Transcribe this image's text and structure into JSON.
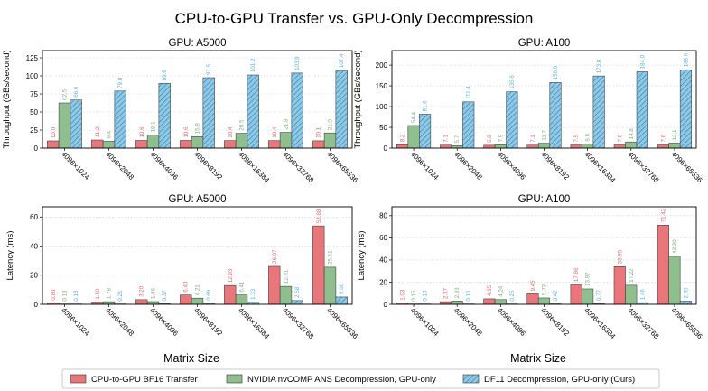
{
  "figure": {
    "title": "CPU-to-GPU Transfer vs. GPU-Only Decompression",
    "shared_xlabel": "Matrix Size"
  },
  "legend": [
    {
      "label": "CPU-to-GPU BF16 Transfer",
      "color": "#e8767a",
      "hatch": false
    },
    {
      "label": "NVIDIA nvCOMP ANS Decompression, GPU-only",
      "color": "#8fbf8f",
      "hatch": false
    },
    {
      "label": "DF11 Decompression, GPU-only (Ours)",
      "color": "#8ec9e6",
      "hatch": true
    }
  ],
  "colors": {
    "transfer": "#e8767a",
    "transfer_label": "#e06c70",
    "nvcomp": "#8fbf8f",
    "nvcomp_label": "#7faf7f",
    "df11": "#8ec9e6",
    "df11_label": "#5fb3d9",
    "hatch": "#3a7fb0",
    "grid": "#cccccc"
  },
  "chart_data": [
    {
      "type": "bar",
      "title": "GPU: A5000",
      "xlabel": "",
      "ylabel": "Throughput (GBs/second)",
      "ylim": [
        0,
        135
      ],
      "yticks": [
        0,
        25,
        50,
        75,
        100,
        125
      ],
      "grid": true,
      "categories": [
        "4096×1024",
        "4096×2048",
        "4096×4096",
        "4096×8192",
        "4096×16384",
        "4096×32768",
        "4096×65536"
      ],
      "series": [
        {
          "name": "CPU-to-GPU BF16 Transfer",
          "values": [
            10.0,
            11.2,
            10.6,
            10.6,
            10.4,
            10.4,
            10.1
          ]
        },
        {
          "name": "NVIDIA nvCOMP ANS Decompression, GPU-only",
          "values": [
            62.5,
            9.4,
            18.1,
            15.9,
            20.5,
            21.8,
            21.0
          ]
        },
        {
          "name": "DF11 Decompression, GPU-only (Ours)",
          "values": [
            66.6,
            79.0,
            89.6,
            97.5,
            101.2,
            103.9,
            107.4
          ]
        }
      ],
      "data_labels": [
        [
          "10.0",
          "11.2",
          "10.6",
          "10.6",
          "10.4",
          "10.4",
          "10.1"
        ],
        [
          "62.5",
          "9.4",
          "18.1",
          "15.9",
          "20.5",
          "21.8",
          "21.0"
        ],
        [
          "66.6",
          "79.0",
          "89.6",
          "97.5",
          "101.2",
          "103.9",
          "107.4"
        ]
      ]
    },
    {
      "type": "bar",
      "title": "GPU: A100",
      "xlabel": "",
      "ylabel": "Throughput (GBs/second)",
      "ylim": [
        0,
        235
      ],
      "yticks": [
        0,
        50,
        100,
        150,
        200
      ],
      "grid": true,
      "categories": [
        "4096×1024",
        "4096×2048",
        "4096×4096",
        "4096×8192",
        "4096×16384",
        "4096×32768",
        "4096×65536"
      ],
      "series": [
        {
          "name": "CPU-to-GPU BF16 Transfer",
          "values": [
            8.2,
            7.1,
            6.8,
            7.1,
            7.5,
            7.6,
            7.6
          ]
        },
        {
          "name": "NVIDIA nvCOMP ANS Decompression, GPU-only",
          "values": [
            54.4,
            5.7,
            7.9,
            11.7,
            9.6,
            14.8,
            12.1
          ]
        },
        {
          "name": "DF11 Decompression, GPU-only (Ours)",
          "values": [
            81.6,
            111.4,
            135.6,
            158.0,
            173.8,
            184.0,
            188.6
          ]
        }
      ],
      "data_labels": [
        [
          "8.2",
          "7.1",
          "6.8",
          "7.1",
          "7.5",
          "7.6",
          "7.6"
        ],
        [
          "54.4",
          "5.7",
          "7.9",
          "11.7",
          "9.6",
          "14.8",
          "12.1"
        ],
        [
          "81.6",
          "111.4",
          "135.6",
          "158.0",
          "173.8",
          "184.0",
          "188.6"
        ]
      ]
    },
    {
      "type": "bar",
      "title": "GPU: A5000",
      "xlabel": "Matrix Size",
      "ylabel": "Latency (ms)",
      "ylim": [
        0,
        67
      ],
      "yticks": [
        0,
        20,
        40,
        60
      ],
      "grid": true,
      "categories": [
        "4096×1024",
        "4096×2048",
        "4096×4096",
        "4096×8192",
        "4096×16384",
        "4096×32768",
        "4096×65536"
      ],
      "series": [
        {
          "name": "CPU-to-GPU BF16 Transfer",
          "values": [
            0.8,
            1.5,
            3.2,
            6.4,
            12.93,
            26.07,
            53.88
          ]
        },
        {
          "name": "NVIDIA nvCOMP ANS Decompression, GPU-only",
          "values": [
            0.13,
            1.78,
            1.86,
            4.21,
            6.41,
            12.31,
            25.51
          ]
        },
        {
          "name": "DF11 Decompression, GPU-only (Ours)",
          "values": [
            0.13,
            0.21,
            0.37,
            0.69,
            1.33,
            2.58,
            5.0
          ]
        }
      ],
      "data_labels": [
        [
          "0.80",
          "1.50",
          "3.20",
          "6.40",
          "12.93",
          "26.07",
          "53.88"
        ],
        [
          "0.13",
          "1.78",
          "1.86",
          "4.21",
          "6.41",
          "12.31",
          "25.51"
        ],
        [
          "0.13",
          "0.21",
          "0.37",
          "0.69",
          "1.33",
          "2.58",
          "5.00"
        ]
      ]
    },
    {
      "type": "bar",
      "title": "GPU: A100",
      "xlabel": "Matrix Size",
      "ylabel": "Latency (ms)",
      "ylim": [
        0,
        88
      ],
      "yticks": [
        0,
        20,
        40,
        60,
        80
      ],
      "grid": true,
      "categories": [
        "4096×1024",
        "4096×2048",
        "4096×4096",
        "4096×8192",
        "4096×16384",
        "4096×32768",
        "4096×65536"
      ],
      "series": [
        {
          "name": "CPU-to-GPU BF16 Transfer",
          "values": [
            1.03,
            2.37,
            4.95,
            9.45,
            17.86,
            33.95,
            71.42
          ]
        },
        {
          "name": "NVIDIA nvCOMP ANS Decompression, GPU-only",
          "values": [
            0.15,
            2.93,
            4.24,
            5.73,
            13.87,
            17.22,
            43.3
          ]
        },
        {
          "name": "DF11 Decompression, GPU-only (Ours)",
          "values": [
            0.1,
            0.15,
            0.25,
            0.42,
            0.77,
            1.46,
            2.85
          ]
        }
      ],
      "data_labels": [
        [
          "1.03",
          "2.37",
          "4.95",
          "9.45",
          "17.86",
          "33.95",
          "71.42"
        ],
        [
          "0.15",
          "2.93",
          "4.24",
          "5.73",
          "13.87",
          "17.22",
          "43.30"
        ],
        [
          "0.10",
          "0.15",
          "0.25",
          "0.42",
          "0.77",
          "1.46",
          "2.85"
        ]
      ]
    }
  ]
}
